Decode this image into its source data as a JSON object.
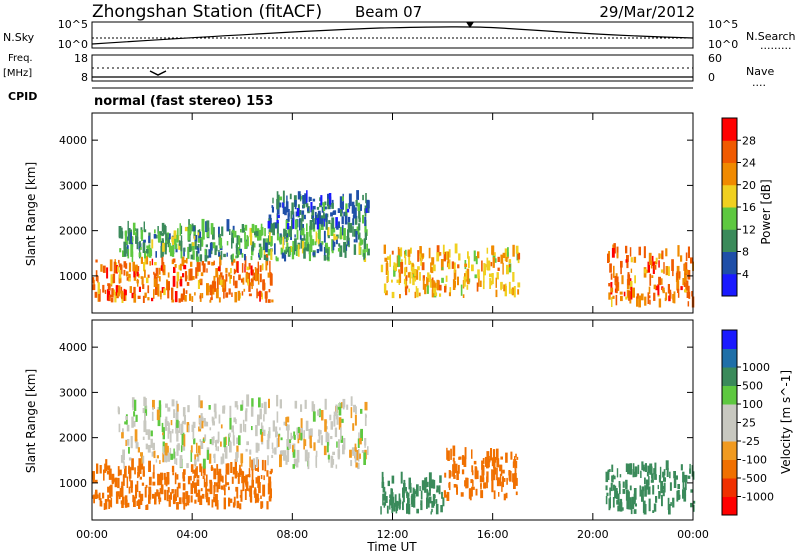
{
  "header": {
    "station_title": "Zhongshan Station (fitACF)",
    "beam": "Beam 07",
    "date": "29/Mar/2012"
  },
  "noise_panel": {
    "left_label": "N.Sky",
    "right_label": "N.Search",
    "right_sample": ".........",
    "tick_top": "10^5",
    "tick_bottom": "10^0"
  },
  "freq_panel": {
    "left_label_1": "Freq.",
    "left_label_2": "[MHz]",
    "left_tick_top": "18",
    "left_tick_bottom": "8",
    "right_label": "Nave",
    "right_sample": "....",
    "right_tick_top": "60",
    "right_tick_bottom": "0"
  },
  "cpid": {
    "label": "CPID",
    "text": "normal (fast stereo) 153"
  },
  "colors": {
    "power_scale": [
      "#1a1aff",
      "#1f4fa8",
      "#3a8a5a",
      "#5ec840",
      "#f0d020",
      "#f08a00",
      "#f05a00",
      "#ff0000"
    ],
    "velocity_scale": [
      "#ff0000",
      "#f03000",
      "#f07000",
      "#f09a20",
      "#c8c8c0",
      "#c8c8c0",
      "#5ec840",
      "#3a8a5a",
      "#1f6fa8",
      "#1a1aff"
    ]
  },
  "chart_data": [
    {
      "type": "heatmap",
      "panel": "power",
      "xlabel": "",
      "ylabel": "Slant Range [km]",
      "xlim": [
        "00:00",
        "24:00"
      ],
      "ylim": [
        180,
        4600
      ],
      "yticks": [
        "1000",
        "2000",
        "3000",
        "4000"
      ],
      "colorbar_label": "Power [dB]",
      "colorbar_ticks": [
        "4",
        "8",
        "12",
        "16",
        "20",
        "24",
        "28"
      ],
      "colorbar_range": [
        0,
        32
      ],
      "echo_regions": [
        {
          "t_start": "00:00",
          "t_end": "07:10",
          "range_km": [
            400,
            1300
          ],
          "power_dB": 24
        },
        {
          "t_start": "01:00",
          "t_end": "11:00",
          "range_km": [
            1300,
            2000
          ],
          "power_dB": 12
        },
        {
          "t_start": "07:00",
          "t_end": "11:00",
          "range_km": [
            2000,
            2700
          ],
          "power_dB": 8
        },
        {
          "t_start": "11:30",
          "t_end": "17:00",
          "range_km": [
            500,
            1500
          ],
          "power_dB": 20
        },
        {
          "t_start": "20:30",
          "t_end": "24:00",
          "range_km": [
            300,
            1500
          ],
          "power_dB": 24
        }
      ]
    },
    {
      "type": "heatmap",
      "panel": "velocity",
      "xlabel": "Time UT",
      "ylabel": "Slant Range [km]",
      "xlim": [
        "00:00",
        "24:00"
      ],
      "ylim": [
        180,
        4600
      ],
      "xticks": [
        "00:00",
        "04:00",
        "08:00",
        "12:00",
        "16:00",
        "20:00",
        "00:00"
      ],
      "yticks": [
        "1000",
        "2000",
        "3000",
        "4000"
      ],
      "colorbar_label": "Velocity [m s^-1]",
      "colorbar_ticks": [
        "-1000",
        "-500",
        "-100",
        "-25",
        "25",
        "100",
        "500",
        "1000"
      ],
      "echo_regions": [
        {
          "t_start": "00:00",
          "t_end": "07:10",
          "range_km": [
            400,
            1300
          ],
          "velocity_ms": -300
        },
        {
          "t_start": "01:00",
          "t_end": "11:00",
          "range_km": [
            1300,
            2700
          ],
          "velocity_ms": 0
        },
        {
          "t_start": "11:30",
          "t_end": "14:00",
          "range_km": [
            300,
            1000
          ],
          "velocity_ms": 150
        },
        {
          "t_start": "14:00",
          "t_end": "17:00",
          "range_km": [
            600,
            1600
          ],
          "velocity_ms": -300
        },
        {
          "t_start": "20:30",
          "t_end": "24:00",
          "range_km": [
            300,
            1300
          ],
          "velocity_ms": 200
        }
      ]
    }
  ]
}
